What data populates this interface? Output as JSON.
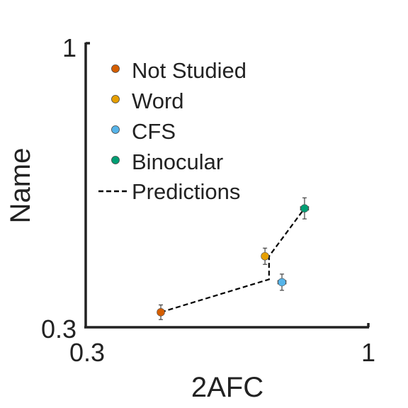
{
  "chart_data": {
    "type": "scatter",
    "xlabel": "2AFC",
    "ylabel": "Name",
    "xlim": [
      0.3,
      1
    ],
    "ylim": [
      0.3,
      1
    ],
    "x_ticks": [
      "0.3",
      "1"
    ],
    "y_ticks": [
      "0.3",
      "1"
    ],
    "grid": false,
    "legend_position": "top-left",
    "series": [
      {
        "name": "Not Studied",
        "color": "#D55E00",
        "x": 0.486,
        "y": 0.337,
        "x_err": 0.008,
        "y_err": 0.018
      },
      {
        "name": "Word",
        "color": "#E69F00",
        "x": 0.744,
        "y": 0.475,
        "x_err": 0.008,
        "y_err": 0.02
      },
      {
        "name": "CFS",
        "color": "#56B4E9",
        "x": 0.786,
        "y": 0.411,
        "x_err": 0.01,
        "y_err": 0.02
      },
      {
        "name": "Binocular",
        "color": "#009E73",
        "x": 0.842,
        "y": 0.593,
        "x_err": 0.01,
        "y_err": 0.026
      }
    ],
    "predictions": {
      "name": "Predictions",
      "style": "dashed",
      "color": "#000000",
      "x": [
        0.486,
        0.754,
        0.754,
        0.842
      ],
      "y": [
        0.337,
        0.418,
        0.475,
        0.593
      ]
    }
  }
}
